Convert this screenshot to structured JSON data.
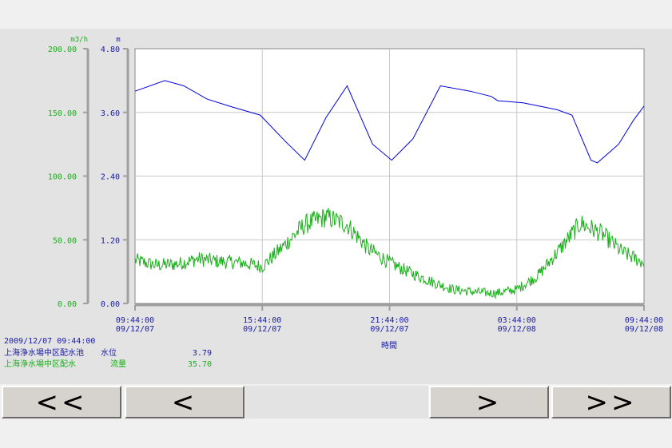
{
  "chart_data": {
    "type": "line",
    "x_ticks": [
      {
        "time": "09:44:00",
        "date": "09/12/07"
      },
      {
        "time": "15:44:00",
        "date": "09/12/07"
      },
      {
        "time": "21:44:00",
        "date": "09/12/07"
      },
      {
        "time": "03:44:00",
        "date": "09/12/08"
      },
      {
        "time": "09:44:00",
        "date": "09/12/08"
      }
    ],
    "xlabel": "時間",
    "xlim": [
      "2009/12/07 09:44",
      "2009/12/08 09:44"
    ],
    "axes": {
      "flow": {
        "unit": "m3/h",
        "ylim": [
          0,
          200
        ],
        "ticks": [
          "200.00",
          "150.00",
          "100.00",
          "50.00",
          "0.00"
        ],
        "color": "#18b018"
      },
      "level": {
        "unit": "m",
        "ylim": [
          0,
          4.8
        ],
        "ticks": [
          "4.80",
          "3.60",
          "2.40",
          "1.20",
          "0.00"
        ],
        "color": "#1a1aa8"
      }
    },
    "grid": true,
    "series": [
      {
        "name": "上海浄水場中区配水池　水位",
        "axis": "level",
        "color": "#0000dd",
        "x_hours": [
          0,
          1.4,
          2.3,
          3.4,
          4.6,
          5.9,
          7.1,
          8.0,
          9.0,
          10.0,
          11.2,
          12.1,
          13.1,
          14.4,
          15.8,
          16.8,
          17.1,
          18.3,
          19.9,
          20.6,
          21.5,
          21.8,
          22.8,
          23.5,
          24.0
        ],
        "y": [
          4.0,
          4.2,
          4.1,
          3.85,
          3.7,
          3.55,
          3.05,
          2.7,
          3.5,
          4.1,
          3.0,
          2.7,
          3.1,
          4.1,
          4.0,
          3.9,
          3.82,
          3.78,
          3.65,
          3.55,
          2.7,
          2.65,
          3.0,
          3.45,
          3.72
        ]
      },
      {
        "name": "上海浄水場中区配水　流量",
        "axis": "flow",
        "color": "#18b018",
        "x_hours": [
          0,
          1,
          2,
          3,
          4,
          5,
          6,
          7,
          8,
          9,
          10,
          11,
          12,
          13,
          14,
          15,
          16,
          17,
          18,
          19,
          20,
          21,
          22,
          23,
          24
        ],
        "y": [
          34,
          30,
          31,
          35,
          33,
          32,
          29,
          45,
          62,
          68,
          62,
          43,
          32,
          24,
          17,
          11,
          9,
          8,
          11,
          22,
          42,
          63,
          55,
          40,
          32
        ]
      }
    ]
  },
  "info": {
    "datetime": "2009/12/07 09:44:00",
    "rows": [
      {
        "station": "上海浄水場中区配水池",
        "item": "水位",
        "value": "3.79"
      },
      {
        "station": "上海浄水場中区配水",
        "item": "流量",
        "value": "35.70"
      }
    ]
  },
  "nav": {
    "first": "<<",
    "prev": "<",
    "next": ">",
    "last": ">>"
  }
}
